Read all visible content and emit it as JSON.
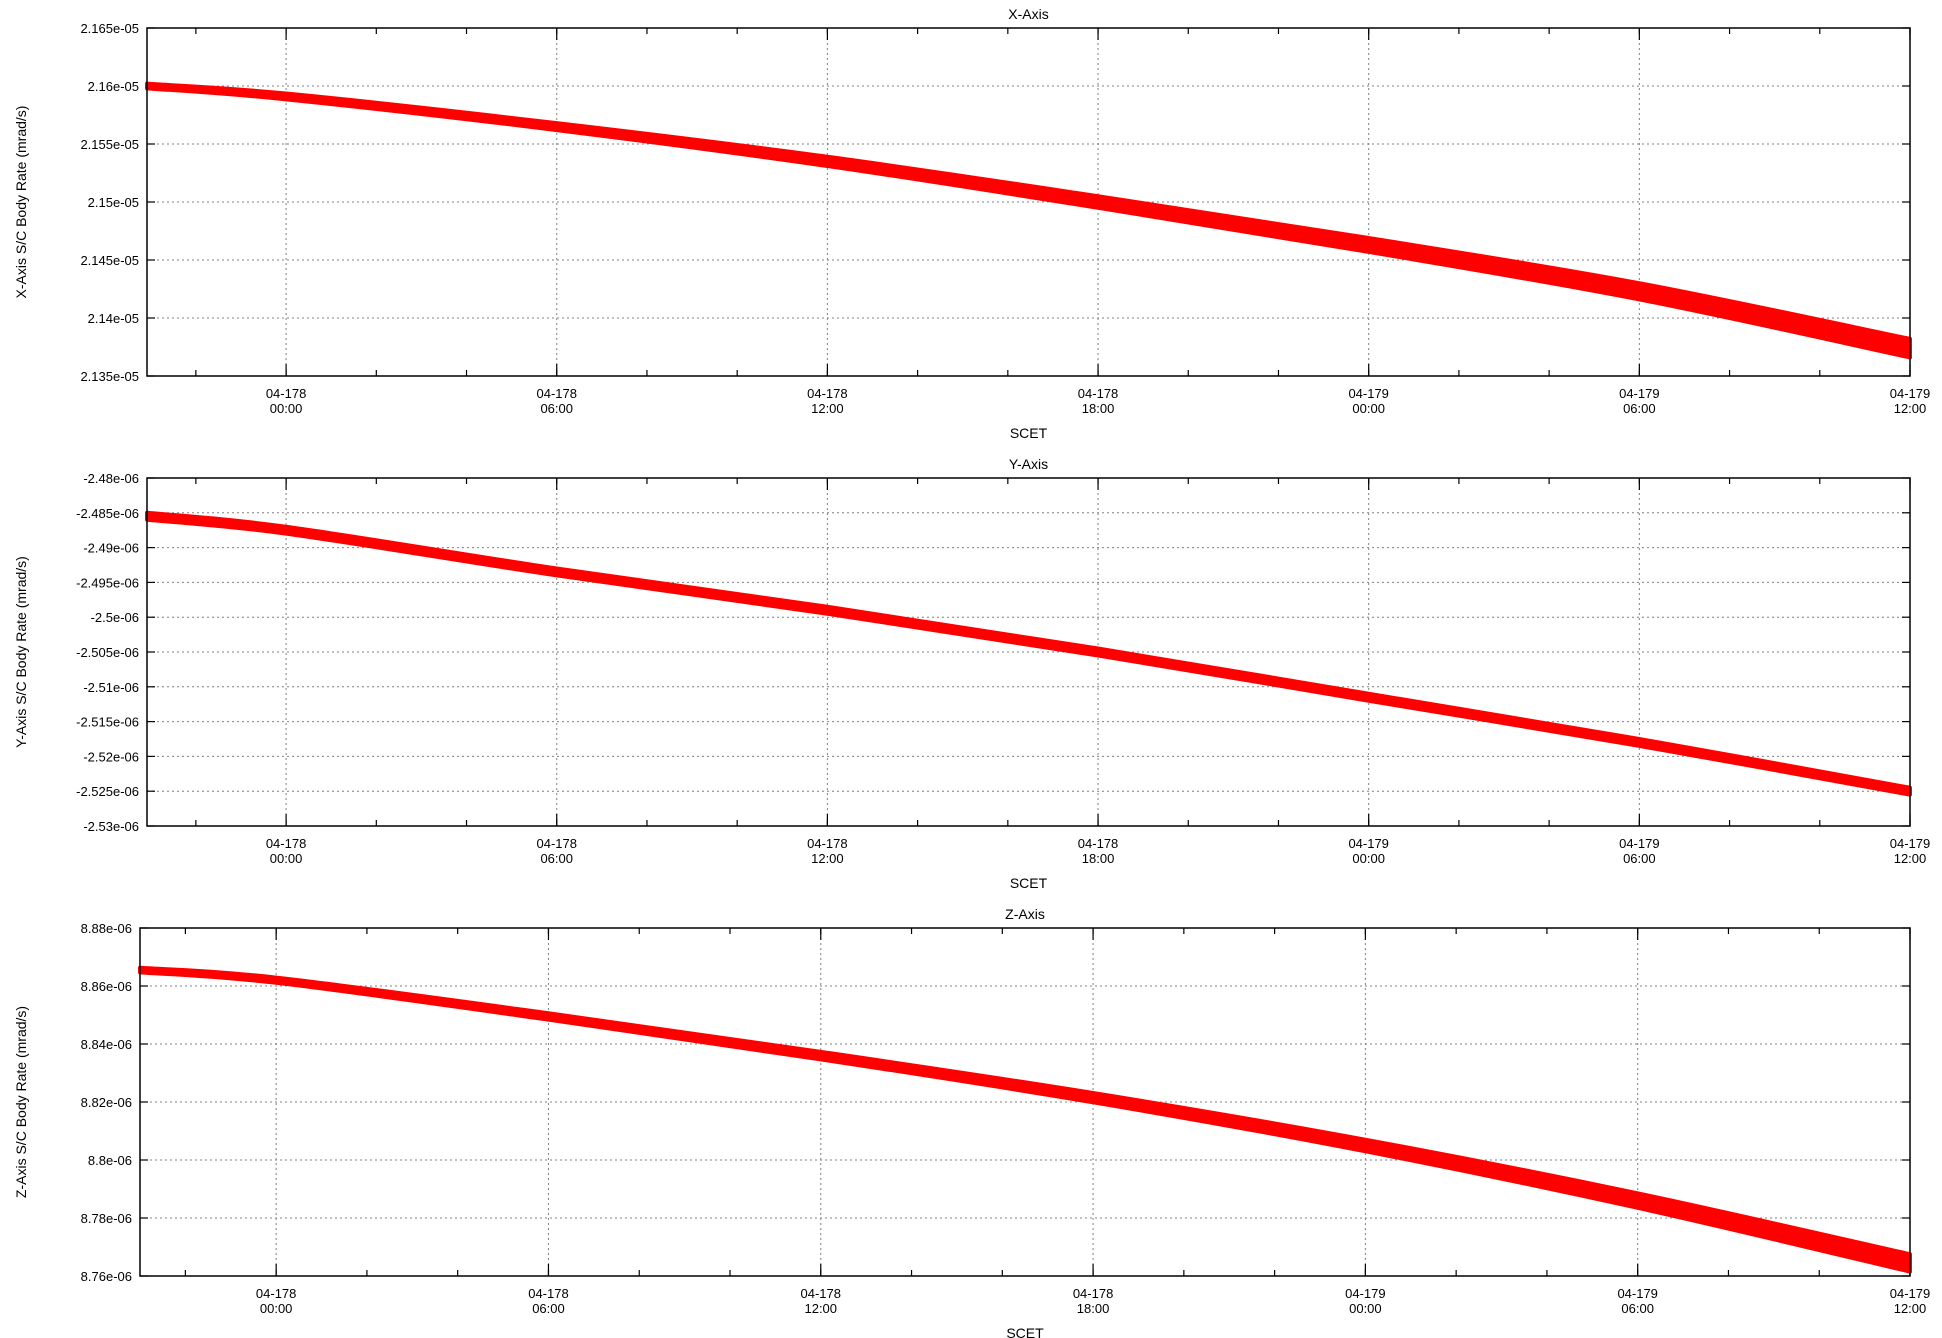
{
  "colors": {
    "series": "#ff0000",
    "grid": "#808080",
    "axis": "#000000"
  },
  "chart_data": [
    {
      "type": "line",
      "title": "X-Axis",
      "xlabel": "SCET",
      "ylabel": "X-Axis S/C Body Rate (mrad/s)",
      "grid": true,
      "legend": "none",
      "xlim": [
        "2004-06-25T20:55:00",
        "2004-06-27T12:00:00"
      ],
      "ylim": [
        2.135e-05,
        2.165e-05
      ],
      "yticks": [
        {
          "value": 2.135e-05,
          "label": "2.135e-05"
        },
        {
          "value": 2.14e-05,
          "label": "2.14e-05"
        },
        {
          "value": 2.145e-05,
          "label": "2.145e-05"
        },
        {
          "value": 2.15e-05,
          "label": "2.15e-05"
        },
        {
          "value": 2.155e-05,
          "label": "2.155e-05"
        },
        {
          "value": 2.16e-05,
          "label": "2.16e-05"
        },
        {
          "value": 2.165e-05,
          "label": "2.165e-05"
        }
      ],
      "xticks": [
        {
          "time": "2004-06-26T00:00:00",
          "line1": "04-178",
          "line2": "00:00"
        },
        {
          "time": "2004-06-26T06:00:00",
          "line1": "04-178",
          "line2": "06:00"
        },
        {
          "time": "2004-06-26T12:00:00",
          "line1": "04-178",
          "line2": "12:00"
        },
        {
          "time": "2004-06-26T18:00:00",
          "line1": "04-178",
          "line2": "18:00"
        },
        {
          "time": "2004-06-27T00:00:00",
          "line1": "04-179",
          "line2": "00:00"
        },
        {
          "time": "2004-06-27T06:00:00",
          "line1": "04-179",
          "line2": "06:00"
        },
        {
          "time": "2004-06-27T12:00:00",
          "line1": "04-179",
          "line2": "12:00"
        }
      ],
      "series": [
        {
          "x": [
            "2004-06-25T20:55:00",
            "2004-06-26T00:00:00",
            "2004-06-26T06:00:00",
            "2004-06-26T12:00:00",
            "2004-06-26T18:00:00",
            "2004-06-27T00:00:00",
            "2004-06-27T06:00:00",
            "2004-06-27T12:00:00"
          ],
          "y": [
            2.16e-05,
            2.1591e-05,
            2.1565e-05,
            2.1535e-05,
            2.15e-05,
            2.1463e-05,
            2.1423e-05,
            2.1374e-05
          ],
          "band": [
            2e-09,
            2.5e-09,
            3e-09,
            4e-09,
            5e-09,
            6e-09,
            7e-09,
            8e-09
          ]
        }
      ]
    },
    {
      "type": "line",
      "title": "Y-Axis",
      "xlabel": "SCET",
      "ylabel": "Y-Axis S/C Body Rate (mrad/s)",
      "grid": true,
      "legend": "none",
      "xlim": [
        "2004-06-25T20:55:00",
        "2004-06-27T12:00:00"
      ],
      "ylim": [
        -2.53e-06,
        -2.48e-06
      ],
      "yticks": [
        {
          "value": -2.53e-06,
          "label": "-2.53e-06"
        },
        {
          "value": -2.525e-06,
          "label": "-2.525e-06"
        },
        {
          "value": -2.52e-06,
          "label": "-2.52e-06"
        },
        {
          "value": -2.515e-06,
          "label": "-2.515e-06"
        },
        {
          "value": -2.51e-06,
          "label": "-2.51e-06"
        },
        {
          "value": -2.505e-06,
          "label": "-2.505e-06"
        },
        {
          "value": -2.5e-06,
          "label": "-2.5e-06"
        },
        {
          "value": -2.495e-06,
          "label": "-2.495e-06"
        },
        {
          "value": -2.49e-06,
          "label": "-2.49e-06"
        },
        {
          "value": -2.485e-06,
          "label": "-2.485e-06"
        },
        {
          "value": -2.48e-06,
          "label": "-2.48e-06"
        }
      ],
      "xticks": [
        {
          "time": "2004-06-26T00:00:00",
          "line1": "04-178",
          "line2": "00:00"
        },
        {
          "time": "2004-06-26T06:00:00",
          "line1": "04-178",
          "line2": "06:00"
        },
        {
          "time": "2004-06-26T12:00:00",
          "line1": "04-178",
          "line2": "12:00"
        },
        {
          "time": "2004-06-26T18:00:00",
          "line1": "04-178",
          "line2": "18:00"
        },
        {
          "time": "2004-06-27T00:00:00",
          "line1": "04-179",
          "line2": "00:00"
        },
        {
          "time": "2004-06-27T06:00:00",
          "line1": "04-179",
          "line2": "06:00"
        },
        {
          "time": "2004-06-27T12:00:00",
          "line1": "04-179",
          "line2": "12:00"
        }
      ],
      "series": [
        {
          "x": [
            "2004-06-25T20:55:00",
            "2004-06-26T00:00:00",
            "2004-06-26T06:00:00",
            "2004-06-26T12:00:00",
            "2004-06-26T18:00:00",
            "2004-06-27T00:00:00",
            "2004-06-27T06:00:00",
            "2004-06-27T12:00:00"
          ],
          "y": [
            -2.4855e-06,
            -2.4875e-06,
            -2.4935e-06,
            -2.499e-06,
            -2.505e-06,
            -2.5115e-06,
            -2.518e-06,
            -2.525e-06
          ],
          "band": [
            5e-10,
            5e-10,
            5e-10,
            5e-10,
            5e-10,
            5e-10,
            5e-10,
            5e-10
          ]
        }
      ]
    },
    {
      "type": "line",
      "title": "Z-Axis",
      "xlabel": "SCET",
      "ylabel": "Z-Axis S/C Body Rate (mrad/s)",
      "grid": true,
      "legend": "none",
      "xlim": [
        "2004-06-25T21:00:00",
        "2004-06-27T12:00:00"
      ],
      "ylim": [
        8.76e-06,
        8.88e-06
      ],
      "yticks": [
        {
          "value": 8.76e-06,
          "label": "8.76e-06"
        },
        {
          "value": 8.78e-06,
          "label": "8.78e-06"
        },
        {
          "value": 8.8e-06,
          "label": "8.8e-06"
        },
        {
          "value": 8.82e-06,
          "label": "8.82e-06"
        },
        {
          "value": 8.84e-06,
          "label": "8.84e-06"
        },
        {
          "value": 8.86e-06,
          "label": "8.86e-06"
        },
        {
          "value": 8.88e-06,
          "label": "8.88e-06"
        }
      ],
      "xticks": [
        {
          "time": "2004-06-26T00:00:00",
          "line1": "04-178",
          "line2": "00:00"
        },
        {
          "time": "2004-06-26T06:00:00",
          "line1": "04-178",
          "line2": "06:00"
        },
        {
          "time": "2004-06-26T12:00:00",
          "line1": "04-178",
          "line2": "12:00"
        },
        {
          "time": "2004-06-26T18:00:00",
          "line1": "04-178",
          "line2": "18:00"
        },
        {
          "time": "2004-06-27T00:00:00",
          "line1": "04-179",
          "line2": "00:00"
        },
        {
          "time": "2004-06-27T06:00:00",
          "line1": "04-179",
          "line2": "06:00"
        },
        {
          "time": "2004-06-27T12:00:00",
          "line1": "04-179",
          "line2": "12:00"
        }
      ],
      "series": [
        {
          "x": [
            "2004-06-25T21:00:00",
            "2004-06-26T00:00:00",
            "2004-06-26T06:00:00",
            "2004-06-26T12:00:00",
            "2004-06-26T18:00:00",
            "2004-06-27T00:00:00",
            "2004-06-27T06:00:00",
            "2004-06-27T12:00:00"
          ],
          "y": [
            8.8655e-06,
            8.862e-06,
            8.8495e-06,
            8.836e-06,
            8.8215e-06,
            8.805e-06,
            8.786e-06,
            8.7645e-06
          ],
          "band": [
            8e-10,
            9e-10,
            1.1e-09,
            1.3e-09,
            1.6e-09,
            2e-09,
            2.5e-09,
            3e-09
          ]
        }
      ]
    }
  ]
}
